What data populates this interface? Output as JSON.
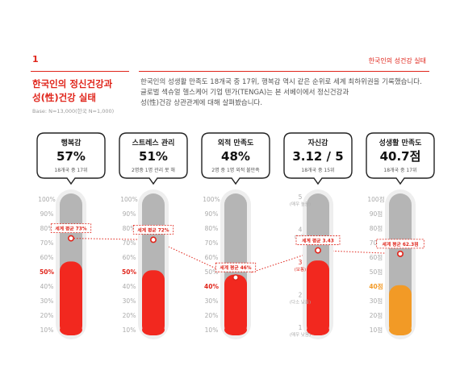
{
  "header": {
    "section_number": "1",
    "section_label": "한국인의 성건강 실태",
    "title_lines": [
      "한국인의 정신건강과",
      "성(性)건강 실태"
    ],
    "base_note": "Base: N=13,000(한국 N=1,000)",
    "description_lines": [
      "한국인의 성생활 만족도 18개국 중 17위, 행복감 역시 같은 순위로 세계 최하위권을 기록했습니다.",
      "글로벌 섹슈얼 헬스케어 기업 텐가(TENGA)는 본 서베이에서 정신건강과",
      "성(性)건강 상관관계에 대해 살펴봤습니다."
    ]
  },
  "colors": {
    "accent": "#e0251b",
    "gauge_track": "#b5b5b5",
    "gauge_outer": "#eeeeee",
    "fill_red": "#f2281f",
    "fill_orange": "#f29a26",
    "axis_gray": "#aaaaaa"
  },
  "chart_data": {
    "type": "bar",
    "categories": [
      "행복감",
      "스트레스 관리",
      "외적 만족도",
      "자신감",
      "성생활 만족도"
    ],
    "gauges": [
      {
        "title": "행복감",
        "value_label": "57%",
        "subtitle": "18개국 중 17위",
        "value": 57,
        "world_avg": 73,
        "world_avg_label": "세계 평균 73%",
        "axis_ticks": [
          "100%",
          "90%",
          "80%",
          "70%",
          "60%",
          "50%",
          "40%",
          "30%",
          "20%",
          "10%"
        ],
        "axis_min": 10,
        "axis_max": 100,
        "highlight_tick": "50%",
        "fill": "red"
      },
      {
        "title": "스트레스 관리",
        "value_label": "51%",
        "subtitle": "2명중 1명 관리 못 해",
        "value": 51,
        "world_avg": 72,
        "world_avg_label": "세계 평균 72%",
        "axis_ticks": [
          "100%",
          "90%",
          "80%",
          "70%",
          "60%",
          "50%",
          "40%",
          "30%",
          "20%",
          "10%"
        ],
        "axis_min": 10,
        "axis_max": 100,
        "highlight_tick": "50%",
        "fill": "red"
      },
      {
        "title": "외적 만족도",
        "value_label": "48%",
        "subtitle": "2명 중 1명 외적 불만족",
        "value": 48,
        "world_avg": 46,
        "world_avg_label": "세계 평균 46%",
        "axis_ticks": [
          "100%",
          "90%",
          "80%",
          "70%",
          "60%",
          "50%",
          "40%",
          "30%",
          "20%",
          "10%"
        ],
        "axis_min": 10,
        "axis_max": 100,
        "highlight_tick": "40%",
        "fill": "red"
      },
      {
        "title": "자신감",
        "value_label": "3.12 / 5",
        "subtitle": "18개국 중 15위",
        "value": 3.12,
        "world_avg": 3.43,
        "world_avg_label": "세계 평균 3.43",
        "axis_ticks": [
          "5",
          "4",
          "3",
          "2",
          "1"
        ],
        "axis_sub": [
          "(매우 높음)",
          "(높음)",
          "(보통)",
          "(다소 낮음)",
          "(매우 낮음)"
        ],
        "axis_min": 1,
        "axis_max": 5,
        "highlight_tick": "3",
        "fill": "red"
      },
      {
        "title": "성생활 만족도",
        "value_label": "40.7점",
        "subtitle": "18개국 중 17위",
        "value": 40.7,
        "world_avg": 62.3,
        "world_avg_label": "세계 평균 62.3점",
        "axis_ticks": [
          "100점",
          "90점",
          "80점",
          "70점",
          "60점",
          "50점",
          "40점",
          "30점",
          "20점",
          "10점"
        ],
        "axis_min": 10,
        "axis_max": 100,
        "highlight_tick": "40점",
        "fill": "orange"
      }
    ]
  }
}
